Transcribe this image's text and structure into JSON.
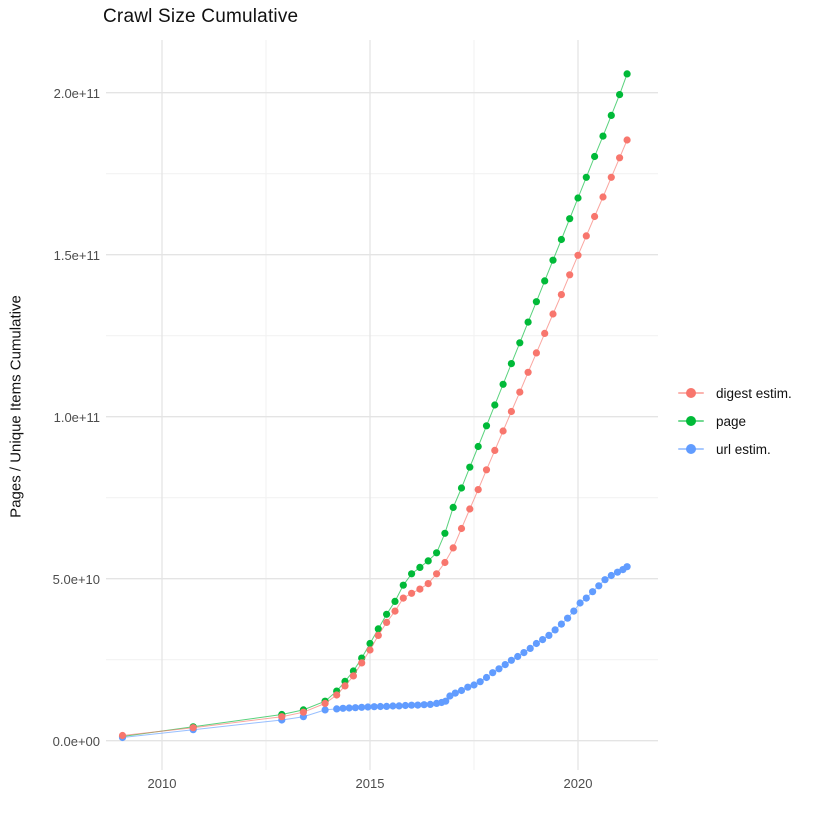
{
  "title": "Crawl Size Cumulative",
  "y_axis": {
    "label": "Pages / Unique Items Cumulative",
    "ticks": [
      {
        "value": 0,
        "label": "0.0e+00"
      },
      {
        "value": 50,
        "label": "5.0e+10"
      },
      {
        "value": 100,
        "label": "1.0e+11"
      },
      {
        "value": 150,
        "label": "1.5e+11"
      },
      {
        "value": 200,
        "label": "2.0e+11"
      }
    ],
    "minor_ticks": [
      25,
      75,
      125,
      175
    ]
  },
  "x_axis": {
    "ticks": [
      {
        "value": 2010,
        "label": "2010"
      },
      {
        "value": 2015,
        "label": "2015"
      },
      {
        "value": 2020,
        "label": "2020"
      }
    ],
    "minor_ticks": [
      2012.5,
      2017.5
    ]
  },
  "legend": {
    "items": [
      {
        "label": "digest estim.",
        "color": "#F8766D"
      },
      {
        "label": "page",
        "color": "#00BA38"
      },
      {
        "label": "url estim.",
        "color": "#619CFF"
      }
    ]
  },
  "colors": {
    "grid_major": "#E4E4E4",
    "grid_minor": "#F1F1F1",
    "tick_text": "#4D4D4D"
  },
  "chart_data": {
    "type": "scatter-line",
    "title": "Crawl Size Cumulative",
    "xlabel": "",
    "ylabel": "Pages / Unique Items Cumulative",
    "value_unit": "billions (1e9) of pages / unique items, cumulative",
    "x_unit": "year (decimal)",
    "xlim": [
      2008.65,
      2021.9
    ],
    "ylim_billions": [
      0,
      216
    ],
    "grid": true,
    "legend_position": "right",
    "draw_order": [
      "page",
      "url estim.",
      "digest estim."
    ],
    "series": [
      {
        "name": "page",
        "color": "#00BA38",
        "points": [
          [
            2009.05,
            1.3
          ],
          [
            2010.75,
            4.3
          ],
          [
            2012.88,
            8.1
          ],
          [
            2013.4,
            9.5
          ],
          [
            2013.92,
            12.2
          ],
          [
            2014.2,
            15.3
          ],
          [
            2014.4,
            18.3
          ],
          [
            2014.6,
            21.5
          ],
          [
            2014.8,
            25.5
          ],
          [
            2015.0,
            30
          ],
          [
            2015.2,
            34.5
          ],
          [
            2015.4,
            39
          ],
          [
            2015.6,
            43
          ],
          [
            2015.8,
            48
          ],
          [
            2016.0,
            51.5
          ],
          [
            2016.2,
            53.5
          ],
          [
            2016.4,
            55.5
          ],
          [
            2016.6,
            58
          ],
          [
            2016.8,
            64
          ],
          [
            2017.0,
            72
          ],
          [
            2017.2,
            78
          ],
          [
            2017.4,
            84.4
          ],
          [
            2017.6,
            90.8
          ],
          [
            2017.8,
            97.2
          ],
          [
            2018.0,
            103.6
          ],
          [
            2018.2,
            110
          ],
          [
            2018.4,
            116.4
          ],
          [
            2018.6,
            122.8
          ],
          [
            2018.8,
            129.2
          ],
          [
            2019.0,
            135.5
          ],
          [
            2019.2,
            141.9
          ],
          [
            2019.4,
            148.3
          ],
          [
            2019.6,
            154.7
          ],
          [
            2019.8,
            161.1
          ],
          [
            2020.0,
            167.5
          ],
          [
            2020.2,
            173.9
          ],
          [
            2020.4,
            180.3
          ],
          [
            2020.6,
            186.6
          ],
          [
            2020.8,
            193
          ],
          [
            2021.0,
            199.4
          ],
          [
            2021.18,
            205.8
          ]
        ]
      },
      {
        "name": "url estim.",
        "color": "#619CFF",
        "points": [
          [
            2009.05,
            1.0
          ],
          [
            2010.75,
            3.4
          ],
          [
            2012.88,
            6.4
          ],
          [
            2013.4,
            7.4
          ],
          [
            2013.92,
            9.5
          ],
          [
            2014.2,
            9.8
          ],
          [
            2014.35,
            10.0
          ],
          [
            2014.5,
            10.1
          ],
          [
            2014.65,
            10.2
          ],
          [
            2014.8,
            10.3
          ],
          [
            2014.95,
            10.4
          ],
          [
            2015.1,
            10.5
          ],
          [
            2015.25,
            10.55
          ],
          [
            2015.4,
            10.6
          ],
          [
            2015.55,
            10.7
          ],
          [
            2015.7,
            10.75
          ],
          [
            2015.85,
            10.85
          ],
          [
            2016.0,
            10.95
          ],
          [
            2016.15,
            11.0
          ],
          [
            2016.3,
            11.1
          ],
          [
            2016.45,
            11.2
          ],
          [
            2016.6,
            11.5
          ],
          [
            2016.72,
            11.8
          ],
          [
            2016.82,
            12.2
          ],
          [
            2016.92,
            13.8
          ],
          [
            2017.05,
            14.7
          ],
          [
            2017.2,
            15.5
          ],
          [
            2017.35,
            16.5
          ],
          [
            2017.5,
            17.2
          ],
          [
            2017.65,
            18.2
          ],
          [
            2017.8,
            19.5
          ],
          [
            2017.95,
            21.0
          ],
          [
            2018.1,
            22.2
          ],
          [
            2018.25,
            23.5
          ],
          [
            2018.4,
            24.8
          ],
          [
            2018.55,
            26.0
          ],
          [
            2018.7,
            27.2
          ],
          [
            2018.85,
            28.5
          ],
          [
            2019.0,
            30.0
          ],
          [
            2019.15,
            31.2
          ],
          [
            2019.3,
            32.5
          ],
          [
            2019.45,
            34.2
          ],
          [
            2019.6,
            36.0
          ],
          [
            2019.75,
            37.8
          ],
          [
            2019.9,
            40.0
          ],
          [
            2020.05,
            42.5
          ],
          [
            2020.2,
            44.0
          ],
          [
            2020.35,
            46.0
          ],
          [
            2020.5,
            47.8
          ],
          [
            2020.65,
            49.7
          ],
          [
            2020.8,
            51.0
          ],
          [
            2020.95,
            52.0
          ],
          [
            2021.08,
            52.8
          ],
          [
            2021.18,
            53.7
          ]
        ]
      },
      {
        "name": "digest estim.",
        "color": "#F8766D",
        "points": [
          [
            2009.05,
            1.6
          ],
          [
            2010.75,
            4.0
          ],
          [
            2012.88,
            7.4
          ],
          [
            2013.4,
            8.8
          ],
          [
            2013.92,
            11.5
          ],
          [
            2014.2,
            14.1
          ],
          [
            2014.4,
            16.9
          ],
          [
            2014.6,
            20
          ],
          [
            2014.8,
            24
          ],
          [
            2015.0,
            28
          ],
          [
            2015.2,
            32.5
          ],
          [
            2015.4,
            36.5
          ],
          [
            2015.6,
            40
          ],
          [
            2015.8,
            44
          ],
          [
            2016.0,
            45.5
          ],
          [
            2016.2,
            46.8
          ],
          [
            2016.4,
            48.5
          ],
          [
            2016.6,
            51.5
          ],
          [
            2016.8,
            55
          ],
          [
            2017.0,
            59.5
          ],
          [
            2017.2,
            65.5
          ],
          [
            2017.4,
            71.5
          ],
          [
            2017.6,
            77.5
          ],
          [
            2017.8,
            83.6
          ],
          [
            2018.0,
            89.6
          ],
          [
            2018.2,
            95.6
          ],
          [
            2018.4,
            101.6
          ],
          [
            2018.6,
            107.6
          ],
          [
            2018.8,
            113.7
          ],
          [
            2019.0,
            119.7
          ],
          [
            2019.2,
            125.7
          ],
          [
            2019.4,
            131.7
          ],
          [
            2019.6,
            137.7
          ],
          [
            2019.8,
            143.8
          ],
          [
            2020.0,
            149.8
          ],
          [
            2020.2,
            155.8
          ],
          [
            2020.4,
            161.8
          ],
          [
            2020.6,
            167.8
          ],
          [
            2020.8,
            173.9
          ],
          [
            2021.0,
            179.9
          ],
          [
            2021.18,
            185.4
          ]
        ]
      }
    ]
  }
}
